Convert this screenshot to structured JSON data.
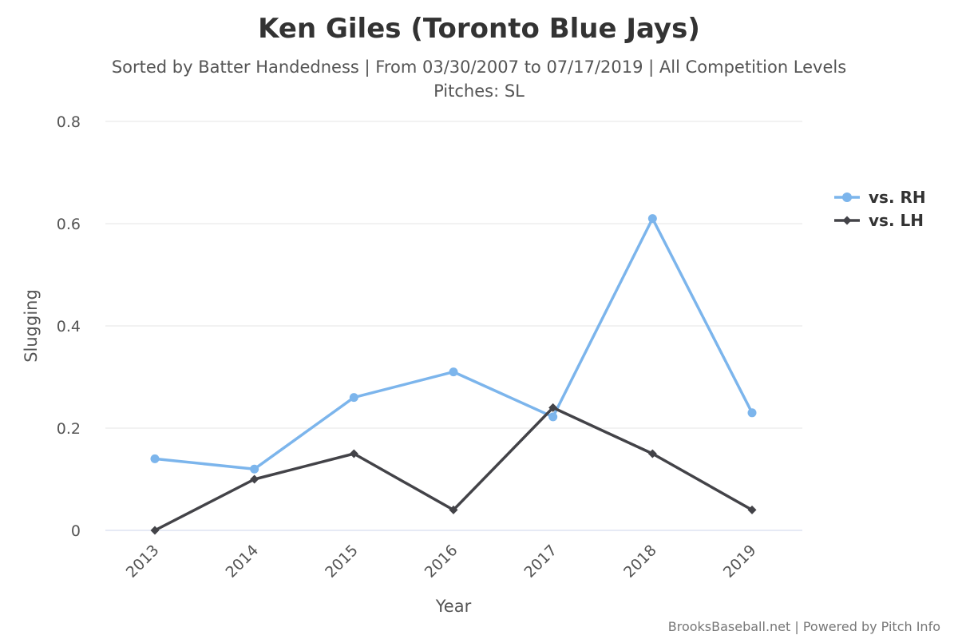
{
  "chart_data": {
    "type": "line",
    "title": "Ken Giles (Toronto Blue Jays)",
    "subtitle_line1": "Sorted by Batter Handedness | From 03/30/2007 to 07/17/2019 | All Competition Levels",
    "subtitle_line2": "Pitches: SL",
    "xlabel": "Year",
    "ylabel": "Slugging",
    "categories": [
      "2013",
      "2014",
      "2015",
      "2016",
      "2017",
      "2018",
      "2019"
    ],
    "ylim": [
      0,
      0.8
    ],
    "yticks": [
      0,
      0.2,
      0.4,
      0.6,
      0.8
    ],
    "ytick_labels": [
      "0",
      "0.2",
      "0.4",
      "0.6",
      "0.8"
    ],
    "grid": true,
    "legend_position": "right",
    "series": [
      {
        "name": "vs. RH",
        "color": "#7cb5ec",
        "marker": "circle",
        "values": [
          0.14,
          0.12,
          0.26,
          0.31,
          0.222,
          0.61,
          0.23
        ]
      },
      {
        "name": "vs. LH",
        "color": "#434348",
        "marker": "diamond",
        "values": [
          0.0,
          0.1,
          0.15,
          0.04,
          0.24,
          0.15,
          0.04
        ]
      }
    ],
    "credits": "BrooksBaseball.net | Powered by Pitch Info"
  }
}
